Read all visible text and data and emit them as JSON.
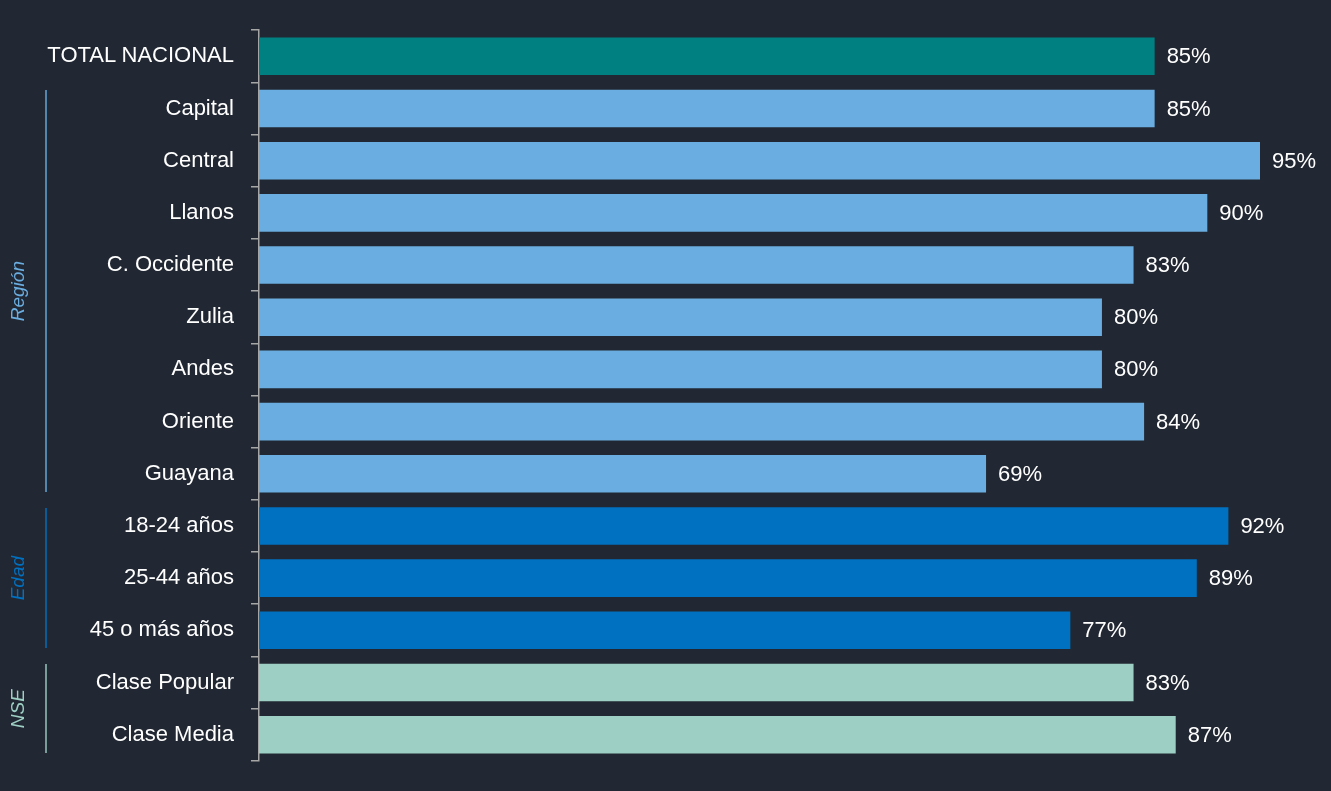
{
  "chart_data": {
    "type": "bar",
    "orientation": "horizontal",
    "tick_labels": "y",
    "categories": [
      "TOTAL NACIONAL",
      "Capital",
      "Central",
      "Llanos",
      "C. Occidente",
      "Zulia",
      "Andes",
      "Oriente",
      "Guayana",
      "18-24 años",
      "25-44 años",
      "45 o más años",
      "Clase Popular",
      "Clase Media"
    ],
    "series": [
      {
        "color": "#008080",
        "values": [
          85,
          null,
          null,
          null,
          null,
          null,
          null,
          null,
          null,
          null,
          null,
          null,
          null,
          null
        ],
        "value_labels": [
          "85%",
          null,
          null,
          null,
          null,
          null,
          null,
          null,
          null,
          null,
          null,
          null,
          null,
          null
        ]
      },
      {
        "name": "Región",
        "color": "#6aade0",
        "values": [
          null,
          85,
          95,
          90,
          83,
          80,
          80,
          84,
          69,
          null,
          null,
          null,
          null,
          null
        ],
        "value_labels": [
          null,
          "85%",
          "95%",
          "90%",
          "83%",
          "80%",
          "80%",
          "84%",
          "69%",
          null,
          null,
          null,
          null,
          null
        ]
      },
      {
        "name": "Edad",
        "color": "#0070c0",
        "values": [
          null,
          null,
          null,
          null,
          null,
          null,
          null,
          null,
          null,
          92,
          89,
          77,
          null,
          null
        ],
        "value_labels": [
          null,
          null,
          null,
          null,
          null,
          null,
          null,
          null,
          null,
          "92%",
          "89%",
          "77%",
          null,
          null
        ]
      },
      {
        "name": "NSE",
        "color": "#9ecfc4",
        "values": [
          null,
          null,
          null,
          null,
          null,
          null,
          null,
          null,
          null,
          null,
          null,
          null,
          83,
          87
        ],
        "value_labels": [
          null,
          null,
          null,
          null,
          null,
          null,
          null,
          null,
          null,
          null,
          null,
          null,
          "83%",
          "87%"
        ]
      }
    ]
  }
}
